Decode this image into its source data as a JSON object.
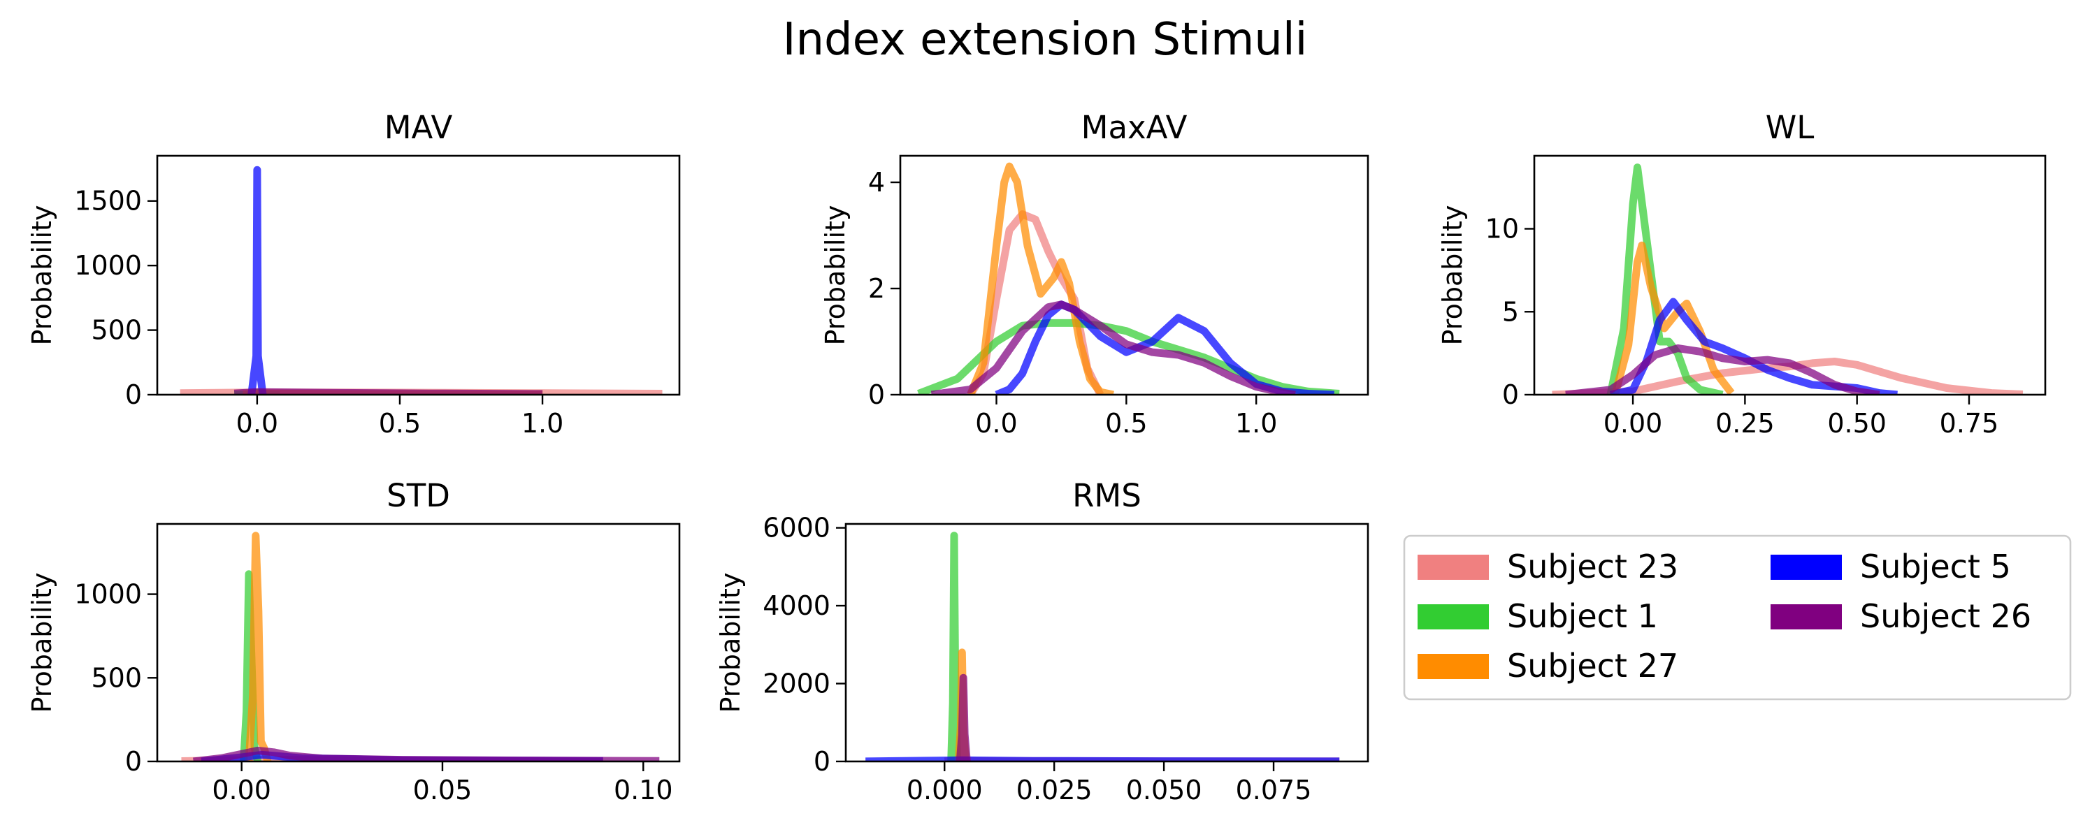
{
  "figure_title": "Index extension Stimuli",
  "chart_data": [
    {
      "type": "line",
      "title": "MAV",
      "ylabel": "Probability",
      "xlim": [
        -0.35,
        1.48
      ],
      "ylim": [
        0,
        1850
      ],
      "xticks": [
        0.0,
        0.5,
        1.0
      ],
      "xtick_labels": [
        "0.0",
        "0.5",
        "1.0"
      ],
      "yticks": [
        0,
        500,
        1000,
        1500
      ],
      "ytick_labels": [
        "0",
        "500",
        "1000",
        "1500"
      ],
      "series": [
        {
          "name": "Subject 23",
          "color": "#f08080",
          "x": [
            -0.27,
            0.0,
            0.5,
            1.0,
            1.42
          ],
          "y": [
            12,
            18,
            16,
            12,
            8
          ]
        },
        {
          "name": "Subject 1",
          "color": "#32cd32",
          "x": [
            -0.08,
            -0.01,
            0.0,
            0.01,
            0.08
          ],
          "y": [
            0,
            5,
            15,
            5,
            0
          ]
        },
        {
          "name": "Subject 27",
          "color": "#ff8c00",
          "x": [
            -0.05,
            0.0,
            0.3,
            0.6,
            1.0
          ],
          "y": [
            4,
            10,
            6,
            4,
            2
          ]
        },
        {
          "name": "Subject 5",
          "color": "#0000ff",
          "x": [
            -0.02,
            -0.003,
            0.0,
            0.003,
            0.02
          ],
          "y": [
            0,
            300,
            1740,
            300,
            0
          ]
        },
        {
          "name": "Subject 26",
          "color": "#800080",
          "x": [
            -0.08,
            0.0,
            0.3,
            0.6,
            1.0
          ],
          "y": [
            10,
            20,
            14,
            10,
            6
          ]
        }
      ]
    },
    {
      "type": "line",
      "title": "MaxAV",
      "ylabel": "Probability",
      "xlim": [
        -0.37,
        1.43
      ],
      "ylim": [
        0,
        4.5
      ],
      "xticks": [
        0.0,
        0.5,
        1.0
      ],
      "xtick_labels": [
        "0.0",
        "0.5",
        "1.0"
      ],
      "yticks": [
        0,
        2,
        4
      ],
      "ytick_labels": [
        "0",
        "2",
        "4"
      ],
      "series": [
        {
          "name": "Subject 23",
          "color": "#f08080",
          "x": [
            -0.1,
            -0.05,
            0.0,
            0.05,
            0.1,
            0.15,
            0.2,
            0.25,
            0.3,
            0.35,
            0.4
          ],
          "y": [
            0,
            0.4,
            1.8,
            3.1,
            3.4,
            3.3,
            2.7,
            2.2,
            1.8,
            0.5,
            0
          ]
        },
        {
          "name": "Subject 1",
          "color": "#32cd32",
          "x": [
            -0.3,
            -0.15,
            0.0,
            0.1,
            0.2,
            0.3,
            0.4,
            0.5,
            0.6,
            0.7,
            0.8,
            0.9,
            1.0,
            1.1,
            1.2,
            1.32
          ],
          "y": [
            0.02,
            0.3,
            1.0,
            1.3,
            1.35,
            1.35,
            1.3,
            1.2,
            1.0,
            0.85,
            0.7,
            0.5,
            0.3,
            0.15,
            0.06,
            0.02
          ]
        },
        {
          "name": "Subject 27",
          "color": "#ff8c00",
          "x": [
            -0.1,
            -0.05,
            0.0,
            0.03,
            0.05,
            0.08,
            0.12,
            0.17,
            0.22,
            0.25,
            0.28,
            0.32,
            0.36,
            0.4,
            0.45
          ],
          "y": [
            0,
            0.6,
            2.8,
            4.0,
            4.3,
            4.0,
            2.8,
            1.9,
            2.2,
            2.5,
            2.1,
            1.0,
            0.3,
            0.05,
            0
          ]
        },
        {
          "name": "Subject 5",
          "color": "#0000ff",
          "x": [
            0.0,
            0.05,
            0.1,
            0.15,
            0.2,
            0.25,
            0.3,
            0.4,
            0.5,
            0.6,
            0.7,
            0.8,
            0.9,
            1.0,
            1.1,
            1.2,
            1.3
          ],
          "y": [
            0,
            0.1,
            0.4,
            1.0,
            1.5,
            1.7,
            1.6,
            1.1,
            0.8,
            1.0,
            1.45,
            1.2,
            0.6,
            0.2,
            0.06,
            0.02,
            0
          ]
        },
        {
          "name": "Subject 26",
          "color": "#800080",
          "x": [
            -0.25,
            -0.1,
            0.0,
            0.1,
            0.2,
            0.25,
            0.3,
            0.4,
            0.5,
            0.6,
            0.7,
            0.8,
            0.9,
            1.0,
            1.1,
            1.15
          ],
          "y": [
            0,
            0.1,
            0.5,
            1.2,
            1.65,
            1.7,
            1.6,
            1.3,
            0.95,
            0.8,
            0.75,
            0.6,
            0.35,
            0.15,
            0.04,
            0
          ]
        }
      ]
    },
    {
      "type": "line",
      "title": "WL",
      "ylabel": "Probability",
      "xlim": [
        -0.22,
        0.92
      ],
      "ylim": [
        0,
        14.4
      ],
      "xticks": [
        0.0,
        0.25,
        0.5,
        0.75
      ],
      "xtick_labels": [
        "0.00",
        "0.25",
        "0.50",
        "0.75"
      ],
      "yticks": [
        0,
        5,
        10
      ],
      "ytick_labels": [
        "0",
        "5",
        "10"
      ],
      "series": [
        {
          "name": "Subject 23",
          "color": "#f08080",
          "x": [
            -0.18,
            0.0,
            0.1,
            0.2,
            0.3,
            0.35,
            0.4,
            0.45,
            0.5,
            0.55,
            0.6,
            0.7,
            0.8,
            0.87
          ],
          "y": [
            0,
            0.2,
            0.8,
            1.3,
            1.6,
            1.7,
            1.9,
            2.0,
            1.8,
            1.4,
            1.0,
            0.4,
            0.1,
            0.02
          ]
        },
        {
          "name": "Subject 1",
          "color": "#32cd32",
          "x": [
            -0.05,
            -0.02,
            0.0,
            0.01,
            0.03,
            0.06,
            0.08,
            0.1,
            0.12,
            0.15,
            0.2
          ],
          "y": [
            0,
            4.0,
            11.5,
            13.7,
            9.5,
            3.2,
            3.2,
            2.5,
            1.0,
            0.3,
            0
          ]
        },
        {
          "name": "Subject 27",
          "color": "#ff8c00",
          "x": [
            -0.04,
            -0.01,
            0.01,
            0.02,
            0.04,
            0.07,
            0.1,
            0.12,
            0.15,
            0.18,
            0.22
          ],
          "y": [
            0,
            3.0,
            8.0,
            9.0,
            6.5,
            4.0,
            5.0,
            5.5,
            3.8,
            1.5,
            0.1
          ]
        },
        {
          "name": "Subject 5",
          "color": "#0000ff",
          "x": [
            -0.05,
            0.0,
            0.03,
            0.06,
            0.09,
            0.12,
            0.16,
            0.2,
            0.25,
            0.3,
            0.35,
            0.4,
            0.45,
            0.5,
            0.55,
            0.59
          ],
          "y": [
            0,
            0.3,
            2.0,
            4.5,
            5.6,
            4.5,
            3.2,
            2.8,
            2.2,
            1.5,
            1.0,
            0.6,
            0.5,
            0.4,
            0.1,
            0
          ]
        },
        {
          "name": "Subject 26",
          "color": "#800080",
          "x": [
            -0.15,
            -0.05,
            0.0,
            0.05,
            0.1,
            0.15,
            0.2,
            0.25,
            0.3,
            0.35,
            0.4,
            0.45,
            0.5,
            0.55
          ],
          "y": [
            0,
            0.3,
            1.2,
            2.4,
            2.8,
            2.6,
            2.2,
            2.0,
            2.1,
            1.9,
            1.3,
            0.6,
            0.2,
            0
          ]
        }
      ]
    },
    {
      "type": "line",
      "title": "STD",
      "ylabel": "Probability",
      "xlim": [
        -0.021,
        0.109
      ],
      "ylim": [
        0,
        1420
      ],
      "xticks": [
        0.0,
        0.05,
        0.1
      ],
      "xtick_labels": [
        "0.00",
        "0.05",
        "0.10"
      ],
      "yticks": [
        0,
        500,
        1000
      ],
      "ytick_labels": [
        "0",
        "500",
        "1000"
      ],
      "series": [
        {
          "name": "Subject 23",
          "color": "#f08080",
          "x": [
            -0.015,
            0.0,
            0.01,
            0.03,
            0.06,
            0.09
          ],
          "y": [
            2,
            8,
            10,
            7,
            4,
            2
          ]
        },
        {
          "name": "Subject 1",
          "color": "#32cd32",
          "x": [
            0.0005,
            0.0012,
            0.0018,
            0.0025,
            0.0032,
            0.004
          ],
          "y": [
            0,
            300,
            1120,
            600,
            80,
            0
          ]
        },
        {
          "name": "Subject 27",
          "color": "#ff8c00",
          "x": [
            0.0018,
            0.0028,
            0.0035,
            0.0042,
            0.0048,
            0.0056,
            0.0065
          ],
          "y": [
            0,
            400,
            1350,
            900,
            120,
            80,
            0
          ]
        },
        {
          "name": "Subject 5",
          "color": "#0000ff",
          "x": [
            -0.01,
            0.0,
            0.005,
            0.015,
            0.04,
            0.09
          ],
          "y": [
            0,
            25,
            40,
            20,
            8,
            3
          ]
        },
        {
          "name": "Subject 26",
          "color": "#800080",
          "x": [
            -0.012,
            -0.005,
            0.0,
            0.004,
            0.008,
            0.012,
            0.02,
            0.04,
            0.07,
            0.104
          ],
          "y": [
            0,
            20,
            45,
            65,
            55,
            35,
            18,
            10,
            6,
            3
          ]
        }
      ]
    },
    {
      "type": "line",
      "title": "RMS",
      "ylabel": "Probability",
      "xlim": [
        -0.0225,
        0.0965
      ],
      "ylim": [
        0,
        6100
      ],
      "xticks": [
        0.0,
        0.025,
        0.05,
        0.075
      ],
      "xtick_labels": [
        "0.000",
        "0.025",
        "0.050",
        "0.075"
      ],
      "yticks": [
        0,
        2000,
        4000,
        6000
      ],
      "ytick_labels": [
        "0",
        "2000",
        "4000",
        "6000"
      ],
      "series": [
        {
          "name": "Subject 23",
          "color": "#f08080",
          "x": [
            0.0,
            0.004,
            0.02,
            0.05,
            0.09
          ],
          "y": [
            5,
            15,
            10,
            6,
            3
          ]
        },
        {
          "name": "Subject 1",
          "color": "#32cd32",
          "x": [
            0.0015,
            0.0019,
            0.0022,
            0.0025,
            0.0029
          ],
          "y": [
            0,
            1500,
            5800,
            1500,
            0
          ]
        },
        {
          "name": "Subject 27",
          "color": "#ff8c00",
          "x": [
            0.0032,
            0.0037,
            0.004,
            0.0043,
            0.0048
          ],
          "y": [
            0,
            900,
            2800,
            900,
            0
          ]
        },
        {
          "name": "Subject 5",
          "color": "#0000ff",
          "x": [
            -0.018,
            0.0,
            0.004,
            0.02,
            0.05,
            0.09
          ],
          "y": [
            2,
            25,
            30,
            15,
            8,
            2
          ]
        },
        {
          "name": "Subject 26",
          "color": "#800080",
          "x": [
            0.0035,
            0.004,
            0.0043,
            0.0046,
            0.0051
          ],
          "y": [
            0,
            700,
            2150,
            700,
            0
          ]
        }
      ]
    }
  ],
  "legend": {
    "placement": "lower-right",
    "columns": 2,
    "entries": [
      {
        "label": "Subject 23",
        "color": "#f08080"
      },
      {
        "label": "Subject 1",
        "color": "#32cd32"
      },
      {
        "label": "Subject 27",
        "color": "#ff8c00"
      },
      {
        "label": "Subject 5",
        "color": "#0000ff"
      },
      {
        "label": "Subject 26",
        "color": "#800080"
      }
    ]
  }
}
